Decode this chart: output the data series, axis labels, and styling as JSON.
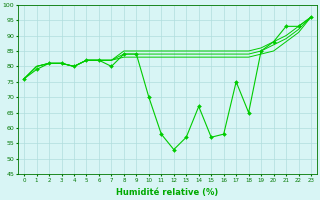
{
  "x": [
    0,
    1,
    2,
    3,
    4,
    5,
    6,
    7,
    8,
    9,
    10,
    11,
    12,
    13,
    14,
    15,
    16,
    17,
    18,
    19,
    20,
    21,
    22,
    23
  ],
  "line_main": [
    76,
    79,
    81,
    81,
    80,
    82,
    82,
    80,
    84,
    84,
    70,
    58,
    53,
    57,
    67,
    57,
    58,
    75,
    65,
    85,
    88,
    93,
    93,
    96
  ],
  "line_smooth1": [
    76,
    80,
    81,
    81,
    80,
    82,
    82,
    82,
    83,
    83,
    83,
    83,
    83,
    83,
    83,
    83,
    83,
    83,
    83,
    84,
    85,
    88,
    91,
    96
  ],
  "line_smooth2": [
    76,
    80,
    81,
    81,
    80,
    82,
    82,
    82,
    84,
    84,
    84,
    84,
    84,
    84,
    84,
    84,
    84,
    84,
    84,
    85,
    87,
    89,
    92,
    96
  ],
  "line_smooth3": [
    76,
    80,
    81,
    81,
    80,
    82,
    82,
    82,
    85,
    85,
    85,
    85,
    85,
    85,
    85,
    85,
    85,
    85,
    85,
    86,
    88,
    90,
    93,
    96
  ],
  "line_color": "#00cc00",
  "bg_color": "#d8f5f5",
  "grid_color": "#b0dede",
  "tick_color": "#007700",
  "xlabel_color": "#00aa00",
  "ylim": [
    45,
    100
  ],
  "yticks": [
    45,
    50,
    55,
    60,
    65,
    70,
    75,
    80,
    85,
    90,
    95,
    100
  ],
  "xlabel": "Humidité relative (%)"
}
